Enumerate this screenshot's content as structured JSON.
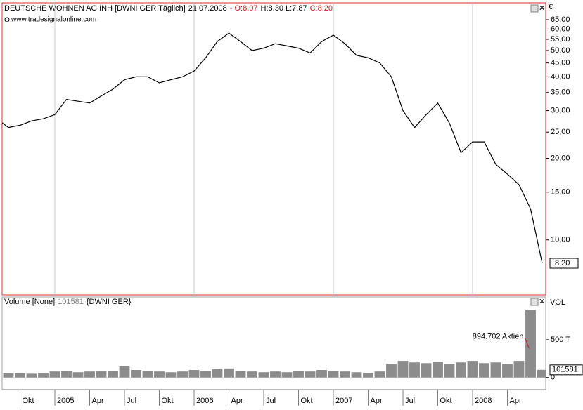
{
  "chart_data": [
    {
      "type": "line",
      "title": "DEUTSCHE WOHNEN AG INH [DWNI GER  Täglich]",
      "date": "21.07.2008",
      "open": "- O:8.07",
      "high_low": "H:8.30 L:7.87",
      "close": "C:8.20",
      "source": "www.tradesignalonline.com",
      "currency": "€",
      "last_label": "8,20",
      "log_scale": true,
      "color": "#000000",
      "xlim": [
        "2004-08",
        "2008-08"
      ],
      "ylim": [
        6.27,
        75
      ],
      "yticks": [
        {
          "value": 10,
          "label": "10,00"
        },
        {
          "value": 15,
          "label": "15,00"
        },
        {
          "value": 20,
          "label": "20,00"
        },
        {
          "value": 25,
          "label": "25,00"
        },
        {
          "value": 30,
          "label": "30,00"
        },
        {
          "value": 35,
          "label": "35,00"
        },
        {
          "value": 40,
          "label": "40,00"
        },
        {
          "value": 45,
          "label": "45,00"
        },
        {
          "value": 50,
          "label": "50,00"
        },
        {
          "value": 55,
          "label": "55,00"
        },
        {
          "value": 60,
          "label": "60,00"
        },
        {
          "value": 65,
          "label": "65,00"
        }
      ],
      "x": [
        "2004-08",
        "2004-09",
        "2004-10",
        "2004-11",
        "2004-12",
        "2005-01",
        "2005-02",
        "2005-03",
        "2005-04",
        "2005-05",
        "2005-06",
        "2005-07",
        "2005-08",
        "2005-09",
        "2005-10",
        "2005-11",
        "2005-12",
        "2006-01",
        "2006-02",
        "2006-03",
        "2006-04",
        "2006-05",
        "2006-06",
        "2006-07",
        "2006-08",
        "2006-09",
        "2006-10",
        "2006-11",
        "2006-12",
        "2007-01",
        "2007-02",
        "2007-03",
        "2007-04",
        "2007-05",
        "2007-06",
        "2007-07",
        "2007-08",
        "2007-09",
        "2007-10",
        "2007-11",
        "2007-12",
        "2008-01",
        "2008-02",
        "2008-03",
        "2008-04",
        "2008-05",
        "2008-06",
        "2008-07"
      ],
      "values": [
        28,
        26,
        26.5,
        27.5,
        28,
        29,
        33,
        32.5,
        32,
        34,
        36,
        39,
        40,
        40,
        38,
        39,
        40,
        42,
        47,
        54,
        58,
        54,
        50,
        51,
        53,
        52,
        51,
        49,
        54,
        57,
        53,
        48,
        47,
        45,
        40,
        30,
        26,
        29,
        32,
        27,
        21,
        23,
        23,
        19,
        17.5,
        16,
        13,
        8.2
      ]
    },
    {
      "type": "bar",
      "title": "Volume [None]",
      "last_label": "101581",
      "symbol": "{DWNI GER}",
      "axis_label": "VOL",
      "annotation": "894.702 Aktien",
      "color": "#8c8c8c",
      "xlim": [
        "2004-08",
        "2008-08"
      ],
      "xticks": [
        {
          "value": "2004-10",
          "label": "Okt"
        },
        {
          "value": "2005-01",
          "label": "2005"
        },
        {
          "value": "2005-04",
          "label": "Apr"
        },
        {
          "value": "2005-07",
          "label": "Jul"
        },
        {
          "value": "2005-10",
          "label": "Okt"
        },
        {
          "value": "2006-01",
          "label": "2006"
        },
        {
          "value": "2006-04",
          "label": "Apr"
        },
        {
          "value": "2006-07",
          "label": "Jul"
        },
        {
          "value": "2006-10",
          "label": "Okt"
        },
        {
          "value": "2007-01",
          "label": "2007"
        },
        {
          "value": "2007-04",
          "label": "Apr"
        },
        {
          "value": "2007-07",
          "label": "Jul"
        },
        {
          "value": "2007-10",
          "label": "Okt"
        },
        {
          "value": "2008-01",
          "label": "2008"
        },
        {
          "value": "2008-04",
          "label": "Apr"
        }
      ],
      "ylim": [
        -160000,
        1066000
      ],
      "yticks": [
        0,
        {
          "value": 500000,
          "label": "500 T"
        }
      ],
      "x": [
        "2004-08",
        "2004-09",
        "2004-10",
        "2004-11",
        "2004-12",
        "2005-01",
        "2005-02",
        "2005-03",
        "2005-04",
        "2005-05",
        "2005-06",
        "2005-07",
        "2005-08",
        "2005-09",
        "2005-10",
        "2005-11",
        "2005-12",
        "2006-01",
        "2006-02",
        "2006-03",
        "2006-04",
        "2006-05",
        "2006-06",
        "2006-07",
        "2006-08",
        "2006-09",
        "2006-10",
        "2006-11",
        "2006-12",
        "2007-01",
        "2007-02",
        "2007-03",
        "2007-04",
        "2007-05",
        "2007-06",
        "2007-07",
        "2007-08",
        "2007-09",
        "2007-10",
        "2007-11",
        "2007-12",
        "2008-01",
        "2008-02",
        "2008-03",
        "2008-04",
        "2008-05",
        "2008-06",
        "2008-07"
      ],
      "values": [
        50000,
        60000,
        55000,
        50000,
        60000,
        80000,
        90000,
        70000,
        80000,
        85000,
        90000,
        150000,
        100000,
        90000,
        80000,
        70000,
        80000,
        100000,
        90000,
        110000,
        120000,
        90000,
        80000,
        70000,
        80000,
        70000,
        90000,
        80000,
        100000,
        90000,
        80000,
        70000,
        60000,
        80000,
        180000,
        220000,
        200000,
        190000,
        210000,
        180000,
        200000,
        220000,
        190000,
        200000,
        180000,
        220000,
        894702,
        101581
      ]
    }
  ]
}
